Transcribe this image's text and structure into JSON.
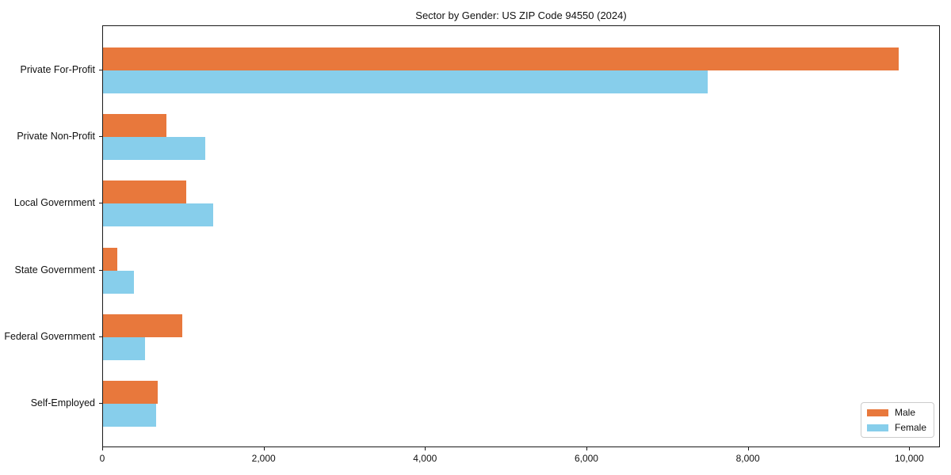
{
  "title": "Sector by Gender: US ZIP Code 94550 (2024)",
  "chart_data": {
    "type": "bar",
    "orientation": "horizontal",
    "title": "Sector by Gender: US ZIP Code 94550 (2024)",
    "categories": [
      "Private For-Profit",
      "Private Non-Profit",
      "Local Government",
      "State Government",
      "Federal Government",
      "Self-Employed"
    ],
    "series": [
      {
        "name": "Male",
        "color": "#E8783C",
        "values": [
          9880,
          790,
          1030,
          180,
          980,
          680
        ]
      },
      {
        "name": "Female",
        "color": "#87CEEB",
        "values": [
          7510,
          1270,
          1370,
          380,
          520,
          660
        ]
      }
    ],
    "xlabel": "",
    "ylabel": "",
    "xlim": [
      0,
      10380
    ],
    "x_ticks": [
      {
        "value": 0,
        "label": "0"
      },
      {
        "value": 2000,
        "label": "2,000"
      },
      {
        "value": 4000,
        "label": "4,000"
      },
      {
        "value": 6000,
        "label": "6,000"
      },
      {
        "value": 8000,
        "label": "8,000"
      },
      {
        "value": 10000,
        "label": "10,000"
      }
    ],
    "grid": false,
    "legend": {
      "position": "lower right",
      "entries": [
        "Male",
        "Female"
      ]
    }
  }
}
